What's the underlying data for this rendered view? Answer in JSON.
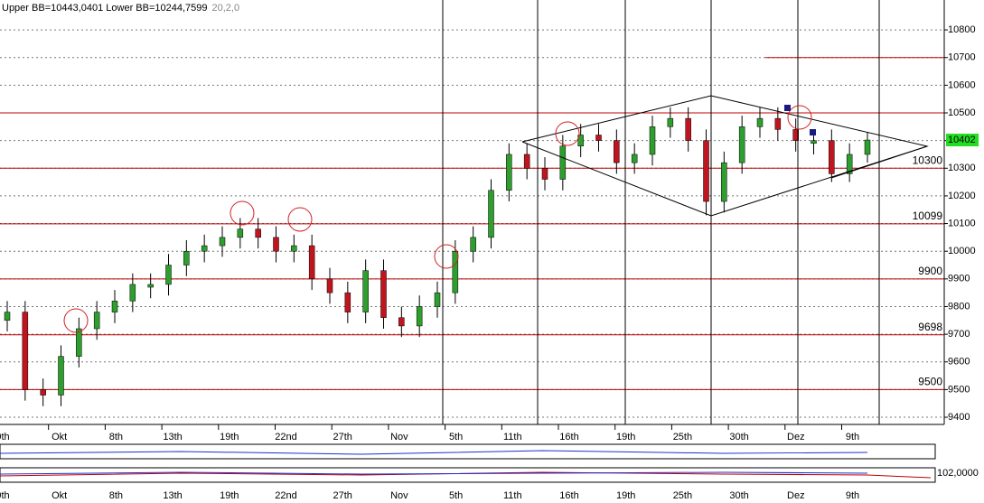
{
  "chart_data": {
    "type": "candlestick",
    "title": "Upper BB=10443,0401  Lower BB=10244,7599",
    "params": "20,2,0",
    "ylim": [
      9374,
      10908
    ],
    "yticks": [
      9400,
      9500,
      9600,
      9700,
      9800,
      9900,
      10000,
      10100,
      10200,
      10300,
      10400,
      10500,
      10600,
      10700,
      10800
    ],
    "grid": true,
    "x_labels": [
      "9th",
      "Okt",
      "8th",
      "13th",
      "19th",
      "22nd",
      "27th",
      "Nov",
      "5th",
      "11th",
      "16th",
      "19th",
      "25th",
      "30th",
      "Dez",
      "9th"
    ],
    "levels": [
      10300,
      10099,
      9900,
      9698,
      9500
    ],
    "resistance_lines": [
      10700,
      10500
    ],
    "last_price": 10402,
    "up_color": "#2e9e2e",
    "down_color": "#c0141e",
    "level_color": "#c00000",
    "indicator_label": "102,0000",
    "candles": [
      [
        9750,
        9820,
        9710,
        9780
      ],
      [
        9780,
        9820,
        9460,
        9500
      ],
      [
        9500,
        9540,
        9440,
        9480
      ],
      [
        9480,
        9660,
        9440,
        9620
      ],
      [
        9620,
        9760,
        9580,
        9720
      ],
      [
        9720,
        9820,
        9680,
        9780
      ],
      [
        9780,
        9860,
        9740,
        9820
      ],
      [
        9820,
        9920,
        9780,
        9880
      ],
      [
        9870,
        9920,
        9830,
        9880
      ],
      [
        9880,
        9990,
        9840,
        9950
      ],
      [
        9950,
        10040,
        9910,
        10000
      ],
      [
        10000,
        10060,
        9960,
        10020
      ],
      [
        10020,
        10090,
        9980,
        10050
      ],
      [
        10050,
        10120,
        10010,
        10080
      ],
      [
        10080,
        10120,
        10010,
        10050
      ],
      [
        10050,
        10090,
        9960,
        10000
      ],
      [
        10000,
        10060,
        9960,
        10020
      ],
      [
        10020,
        10060,
        9860,
        9900
      ],
      [
        9900,
        9940,
        9810,
        9850
      ],
      [
        9850,
        9890,
        9740,
        9780
      ],
      [
        9780,
        9970,
        9740,
        9930
      ],
      [
        9930,
        9970,
        9720,
        9760
      ],
      [
        9760,
        9800,
        9690,
        9730
      ],
      [
        9730,
        9840,
        9690,
        9800
      ],
      [
        9800,
        9890,
        9760,
        9850
      ],
      [
        9850,
        10040,
        9810,
        10000
      ],
      [
        10000,
        10090,
        9960,
        10050
      ],
      [
        10050,
        10260,
        10010,
        10220
      ],
      [
        10220,
        10390,
        10180,
        10350
      ],
      [
        10350,
        10390,
        10260,
        10300
      ],
      [
        10300,
        10340,
        10220,
        10260
      ],
      [
        10260,
        10420,
        10220,
        10380
      ],
      [
        10380,
        10460,
        10340,
        10420
      ],
      [
        10420,
        10460,
        10360,
        10400
      ],
      [
        10400,
        10440,
        10280,
        10320
      ],
      [
        10320,
        10390,
        10280,
        10350
      ],
      [
        10350,
        10490,
        10310,
        10450
      ],
      [
        10450,
        10520,
        10410,
        10480
      ],
      [
        10480,
        10520,
        10360,
        10400
      ],
      [
        10400,
        10440,
        10130,
        10180
      ],
      [
        10180,
        10360,
        10140,
        10320
      ],
      [
        10320,
        10490,
        10280,
        10450
      ],
      [
        10450,
        10520,
        10410,
        10480
      ],
      [
        10480,
        10520,
        10400,
        10440
      ],
      [
        10440,
        10480,
        10360,
        10400
      ],
      [
        10390,
        10440,
        10350,
        10400
      ],
      [
        10400,
        10440,
        10250,
        10280
      ],
      [
        10280,
        10390,
        10250,
        10350
      ],
      [
        10350,
        10430,
        10320,
        10402
      ]
    ]
  }
}
